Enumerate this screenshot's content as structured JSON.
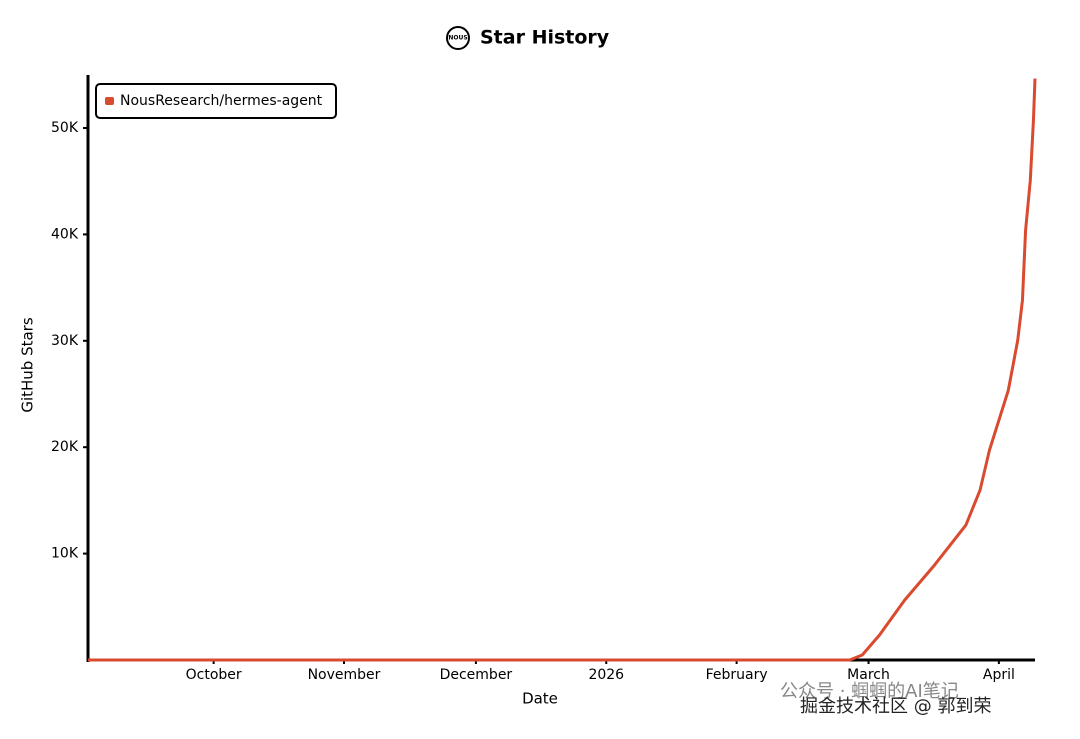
{
  "chart_data": {
    "type": "line",
    "logo": "NOUS",
    "title": "Star History",
    "x_label": "Date",
    "y_label": "GitHub Stars",
    "x": [
      2025.67,
      2026.155,
      2026.163,
      2026.174,
      2026.19,
      2026.209,
      2026.229,
      2026.238,
      2026.244,
      2026.256,
      2026.262,
      2026.265,
      2026.267,
      2026.27,
      2026.272,
      2026.273
    ],
    "series": [
      {
        "name": "NousResearch/hermes-agent",
        "color": "#d94a2f",
        "values": [
          0,
          0,
          470,
          2350,
          5630,
          8920,
          12680,
          15960,
          19720,
          25350,
          30050,
          33800,
          40380,
          45070,
          50700,
          54650
        ]
      }
    ],
    "xlim": [
      2025.67,
      2026.273
    ],
    "ylim": [
      0,
      54700
    ],
    "xticks": [
      {
        "value": 2025.75,
        "label": "October"
      },
      {
        "value": 2025.833,
        "label": "November"
      },
      {
        "value": 2025.917,
        "label": "December"
      },
      {
        "value": 2026.0,
        "label": "2026"
      },
      {
        "value": 2026.083,
        "label": "February"
      },
      {
        "value": 2026.167,
        "label": "March"
      },
      {
        "value": 2026.25,
        "label": "April"
      }
    ],
    "yticks": [
      {
        "value": 10000,
        "label": "10K"
      },
      {
        "value": 20000,
        "label": "20K"
      },
      {
        "value": 30000,
        "label": "30K"
      },
      {
        "value": 40000,
        "label": "40K"
      },
      {
        "value": 50000,
        "label": "50K"
      }
    ],
    "legend": "upper left",
    "grid": false,
    "watermark": [
      "公众号 · 蝈蝈的AI笔记",
      "掘金技术社区 @ 郭到荣"
    ]
  }
}
